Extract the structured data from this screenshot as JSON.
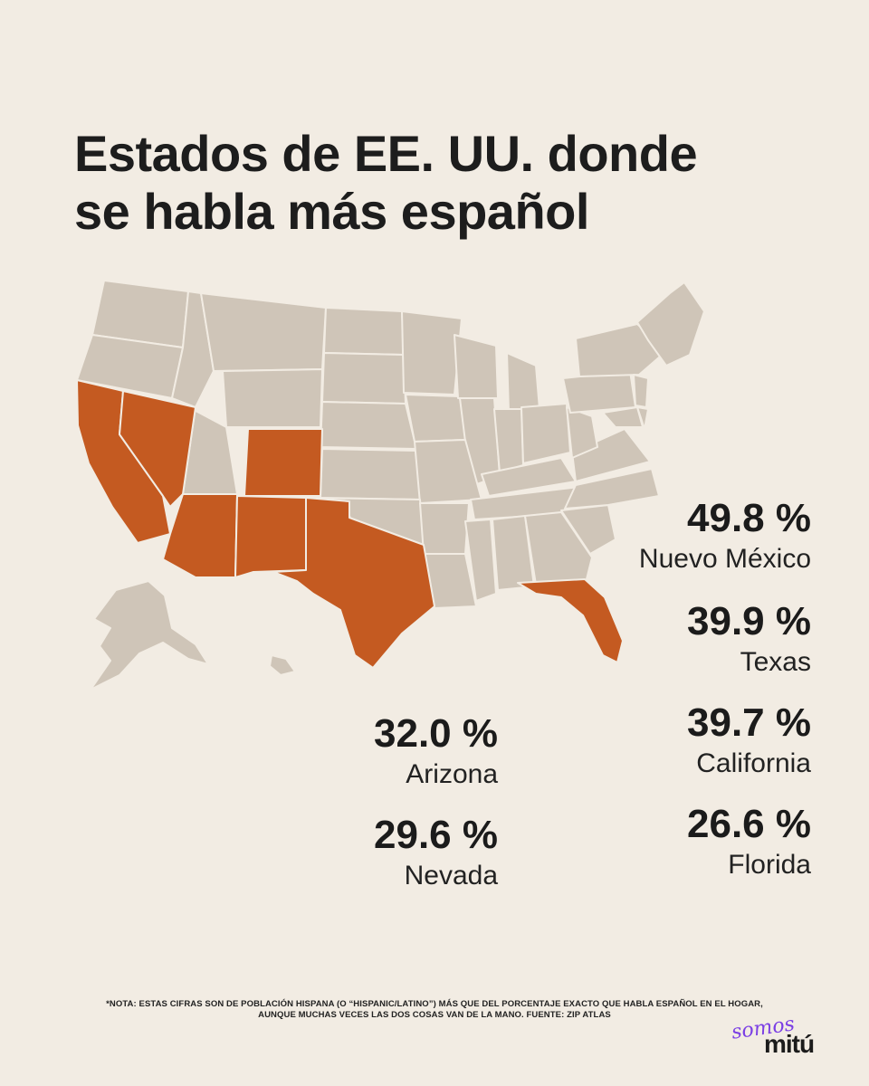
{
  "title": {
    "line1": "Estados de EE. UU. donde",
    "line2": "se habla más español"
  },
  "colors": {
    "background": "#f2ece3",
    "state_default": "#cfc5b8",
    "state_border": "#f2ece3",
    "state_highlight": "#c45a21"
  },
  "map": {
    "highlighted_states": [
      "California",
      "Nevada",
      "Arizona",
      "Colorado",
      "Nuevo México",
      "Texas",
      "Florida"
    ]
  },
  "stats": [
    {
      "value": "49.8 %",
      "state": "Nuevo México"
    },
    {
      "value": "39.9 %",
      "state": "Texas"
    },
    {
      "value": "39.7 %",
      "state": "California"
    },
    {
      "value": "26.6 %",
      "state": "Florida"
    },
    {
      "value": "32.0 %",
      "state": "Arizona"
    },
    {
      "value": "29.6 %",
      "state": "Nevada"
    }
  ],
  "note": {
    "line1": "*Nota: estas cifras son de población hispana (o “Hispanic/Latino”) más que del porcentaje exacto que habla español en el hogar,",
    "line2": "aunque muchas veces las dos cosas van de la mano. Fuente: Zip Atlas"
  },
  "logo": {
    "script": "somos",
    "word": "mitú"
  }
}
